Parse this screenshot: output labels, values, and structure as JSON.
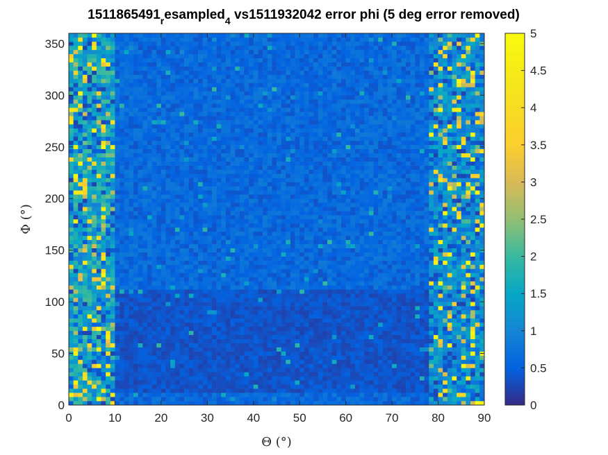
{
  "chart_data": {
    "type": "heatmap",
    "title": {
      "part1": "1511865491",
      "sub1": "r",
      "part2": "esampled",
      "sub2": "4",
      "part3": " vs1511932042 error phi (5 deg error removed)"
    },
    "xlabel": "Θ (°)",
    "ylabel": "Φ (°)",
    "xlim": [
      0,
      90
    ],
    "ylim": [
      0,
      360
    ],
    "x_ticks": [
      "0",
      "10",
      "20",
      "30",
      "40",
      "50",
      "60",
      "70",
      "80",
      "90"
    ],
    "y_ticks": [
      "0",
      "50",
      "100",
      "150",
      "200",
      "250",
      "300",
      "350"
    ],
    "colorbar": {
      "colormap": "parula",
      "range": [
        0,
        5
      ],
      "ticks": [
        "0",
        "0.5",
        "1",
        "1.5",
        "2",
        "2.5",
        "3",
        "3.5",
        "4",
        "4.5",
        "5"
      ]
    },
    "grid": false,
    "description_regions": [
      {
        "theta": [
          0,
          10
        ],
        "phi": [
          0,
          360
        ],
        "typical_value": 1.5,
        "peak_value": 5
      },
      {
        "theta": [
          10,
          78
        ],
        "phi": [
          0,
          360
        ],
        "typical_value": 0.6,
        "peak_value": 2
      },
      {
        "theta": [
          78,
          90
        ],
        "phi": [
          0,
          360
        ],
        "typical_value": 1.2,
        "peak_value": 5
      }
    ]
  }
}
